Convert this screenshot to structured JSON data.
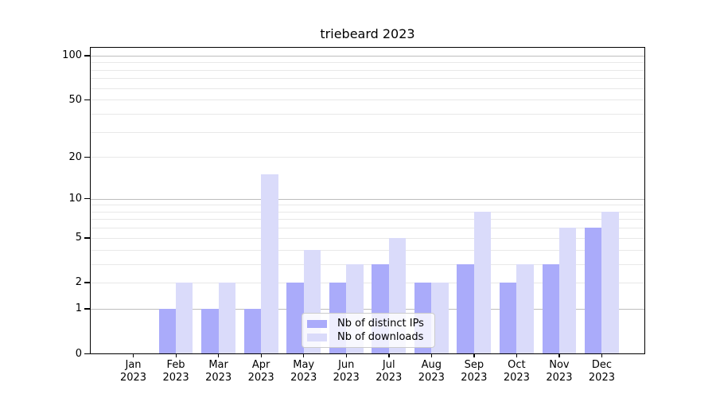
{
  "chart_data": {
    "type": "bar",
    "title": "triebeard 2023",
    "categories": [
      "Jan 2023",
      "Feb 2023",
      "Mar 2023",
      "Apr 2023",
      "May 2023",
      "Jun 2023",
      "Jul 2023",
      "Aug 2023",
      "Sep 2023",
      "Oct 2023",
      "Nov 2023",
      "Dec 2023"
    ],
    "series": [
      {
        "name": "Nb of distinct IPs",
        "key": "distinct-ips",
        "color": "#aaabfa",
        "values": [
          0,
          1,
          1,
          1,
          2,
          2,
          3,
          2,
          3,
          2,
          3,
          6
        ]
      },
      {
        "name": "Nb of downloads",
        "key": "downloads",
        "color": "#dadbfa",
        "values": [
          0,
          2,
          2,
          15,
          4,
          3,
          5,
          2,
          8,
          3,
          6,
          8
        ]
      }
    ],
    "xlabel": "",
    "ylabel": "",
    "yscale": "log1p",
    "ylim": [
      0,
      113
    ],
    "yticks": [
      0,
      1,
      2,
      5,
      10,
      20,
      50,
      100
    ],
    "gridlines": {
      "major": [
        1,
        10,
        100
      ],
      "minor": [
        2,
        3,
        4,
        5,
        6,
        7,
        8,
        9,
        20,
        30,
        40,
        50,
        60,
        70,
        80,
        90
      ]
    },
    "grid": true,
    "legend": {
      "position": "lower center",
      "labels": [
        "Nb of distinct IPs",
        "Nb of downloads"
      ]
    }
  },
  "colors": {
    "bar_distinct_ips": "#aaabfa",
    "bar_downloads": "#dadbfa",
    "grid_major": "#bdbdbd",
    "grid_minor": "#e8e8e8",
    "axis": "#000000",
    "background": "#ffffff",
    "legend_border": "#cccccc"
  }
}
